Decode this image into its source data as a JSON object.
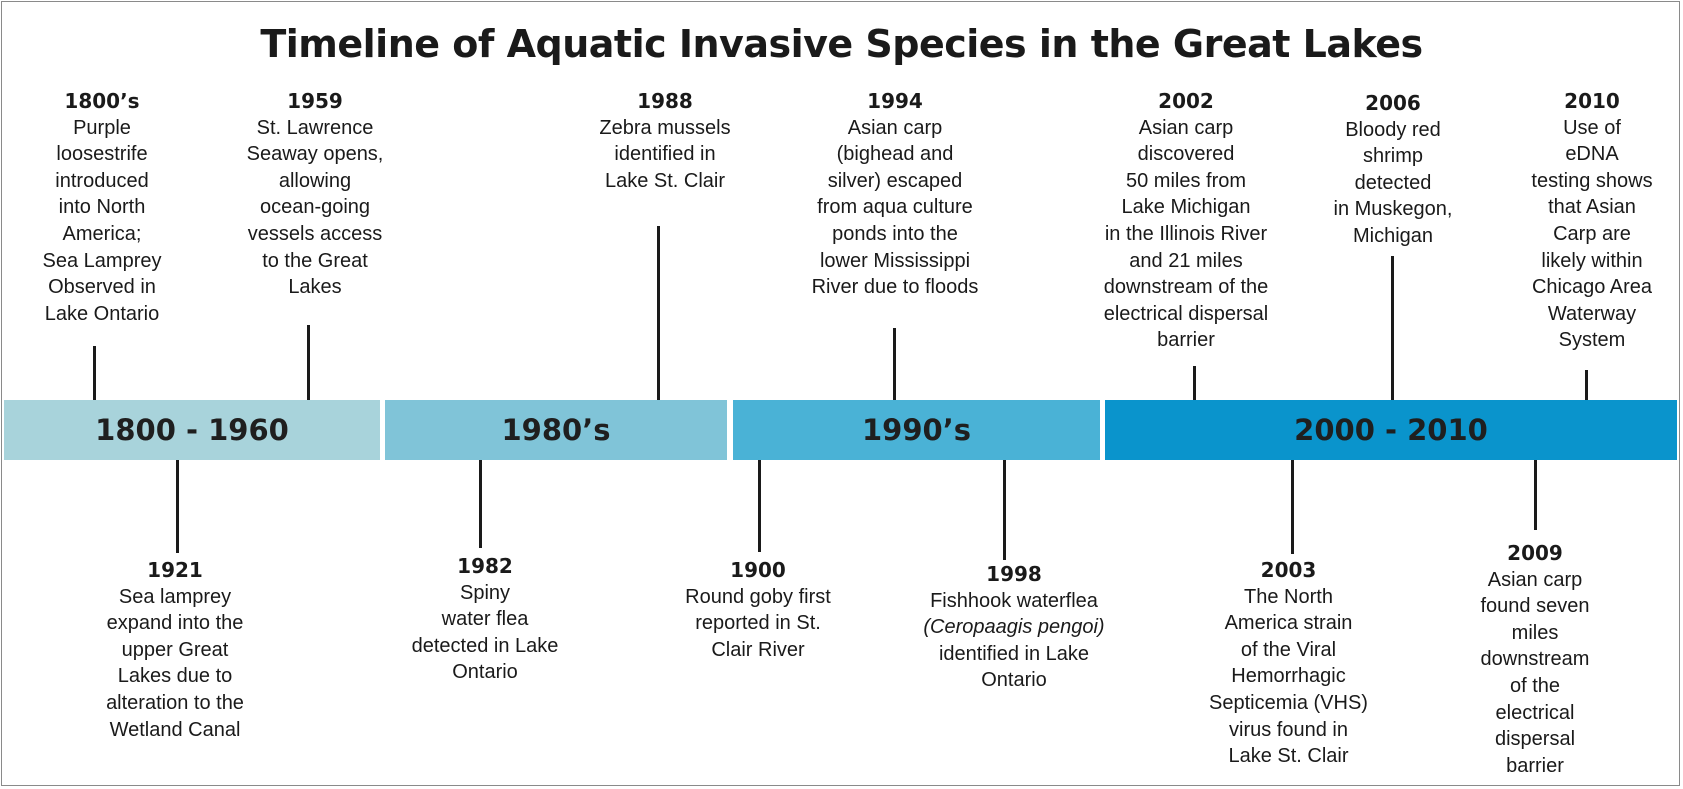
{
  "title": "Timeline of Aquatic Invasive Species in the Great Lakes",
  "bands": [
    {
      "label": "1800 - 1960",
      "color": "#a8d3db"
    },
    {
      "label": "1980’s",
      "color": "#80c4d8"
    },
    {
      "label": "1990’s",
      "color": "#4ab2d6"
    },
    {
      "label": "2000 - 2010",
      "color": "#0a94cc"
    }
  ],
  "events_above": [
    {
      "year": "1800’s",
      "text": "Purple\nloosestrife\nintroduced\ninto North\nAmerica;\nSea Lamprey\nObserved in\nLake Ontario"
    },
    {
      "year": "1959",
      "text": "St. Lawrence\nSeaway opens,\nallowing\nocean-going\nvessels access\nto the Great\nLakes"
    },
    {
      "year": "1988",
      "text": "Zebra mussels\nidentified in\nLake St. Clair"
    },
    {
      "year": "1994",
      "text": "Asian carp\n(bighead and\nsilver) escaped\nfrom  aqua culture\nponds into the\nlower Mississippi\nRiver due to floods"
    },
    {
      "year": "2002",
      "text": "Asian carp\ndiscovered\n50 miles from\nLake Michigan\nin the Illinois River\nand 21 miles\ndownstream of the\nelectrical dispersal\nbarrier"
    },
    {
      "year": "2006",
      "text": "Bloody red\nshrimp\ndetected\nin Muskegon,\nMichigan"
    },
    {
      "year": "2010",
      "text": "Use of\neDNA\ntesting shows\nthat Asian\nCarp are\nlikely within\nChicago Area\nWaterway\nSystem"
    }
  ],
  "events_below": [
    {
      "year": "1921",
      "text": "Sea lamprey\nexpand into the\nupper Great\nLakes due to\nalteration to the\nWetland Canal"
    },
    {
      "year": "1982",
      "text": "Spiny\nwater flea\ndetected in Lake\nOntario"
    },
    {
      "year": "1900",
      "text": "Round goby first\nreported in St.\nClair River"
    },
    {
      "year": "1998",
      "text_before": "Fishhook waterflea",
      "text_italic": "(Ceropaagis pengoi)",
      "text_after": "identified in Lake\nOntario"
    },
    {
      "year": "2003",
      "text": "The North\nAmerica strain\nof the Viral\nHemorrhagic\nSepticemia (VHS)\nvirus found in\nLake St. Clair"
    },
    {
      "year": "2009",
      "text": "Asian carp\nfound seven\nmiles\ndownstream\nof the\nelectrical\ndispersal\nbarrier"
    }
  ]
}
